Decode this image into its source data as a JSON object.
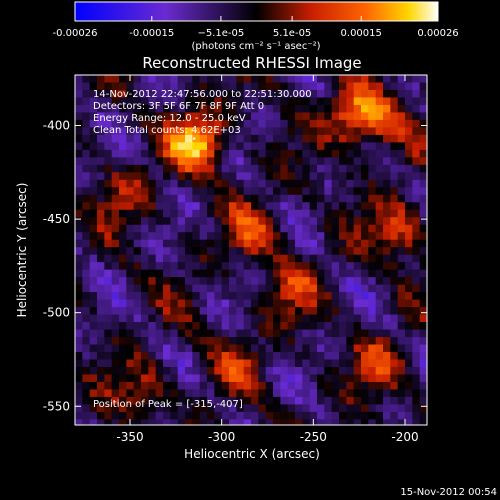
{
  "chart_data": {
    "type": "heatmap",
    "title": "Reconstructed RHESSI Image",
    "xlabel": "Heliocentric X (arcsec)",
    "ylabel": "Heliocentric Y (arcsec)",
    "xlim": [
      -380,
      -188
    ],
    "ylim": [
      -560,
      -373
    ],
    "x_ticks": [
      {
        "value": -350,
        "label": "-350"
      },
      {
        "value": -300,
        "label": "-300"
      },
      {
        "value": -250,
        "label": "-250"
      },
      {
        "value": -200,
        "label": "-200"
      }
    ],
    "y_ticks": [
      {
        "value": -400,
        "label": "-400"
      },
      {
        "value": -450,
        "label": "-450"
      },
      {
        "value": -500,
        "label": "-500"
      },
      {
        "value": -550,
        "label": "-550"
      }
    ],
    "colorbar": {
      "range": [
        -0.00026,
        0.00026
      ],
      "ticks": [
        {
          "value": -0.00026,
          "label": "-0.00026"
        },
        {
          "value": -0.00015,
          "label": "-0.00015"
        },
        {
          "value": -5.1e-05,
          "label": "−5.1e-05"
        },
        {
          "value": 5.1e-05,
          "label": "5.1e-05"
        },
        {
          "value": 0.00015,
          "label": "0.00015"
        },
        {
          "value": 0.00026,
          "label": "0.00026"
        }
      ],
      "units_label": "(photons cm⁻² s⁻¹ asec⁻²)",
      "colors": [
        "#0000ff",
        "#6a2bd0",
        "#000000",
        "#c81e00",
        "#ff6400",
        "#ffd700",
        "#ffffff"
      ]
    },
    "annotations": [
      "14-Nov-2012 22:47:56.000 to 22:51:30.000",
      "Detectors: 3F 5F 6F 7F 8F 9F  Att 0",
      "Energy Range: 12.0 - 25.0 keV",
      "Clean    Total counts: 4.62E+03"
    ],
    "peak_label": "Position of Peak = [-315,-407]",
    "peak": [
      -315,
      -407
    ],
    "bright_regions": [
      {
        "x": -315,
        "y": -407,
        "value": 0.00026
      },
      {
        "x": -230,
        "y": -393,
        "value": 0.00018
      },
      {
        "x": -205,
        "y": -455,
        "value": 0.00014
      },
      {
        "x": -285,
        "y": -455,
        "value": 0.00012
      },
      {
        "x": -265,
        "y": -485,
        "value": 0.00011
      },
      {
        "x": -355,
        "y": -435,
        "value": 9e-05
      },
      {
        "x": -345,
        "y": -540,
        "value": 0.0001
      },
      {
        "x": -295,
        "y": -525,
        "value": 8e-05
      },
      {
        "x": -215,
        "y": -525,
        "value": 0.00011
      },
      {
        "x": -215,
        "y": -395,
        "value": 0.00013
      }
    ]
  },
  "footer": {
    "timestamp": "15-Nov-2012 00:54"
  }
}
